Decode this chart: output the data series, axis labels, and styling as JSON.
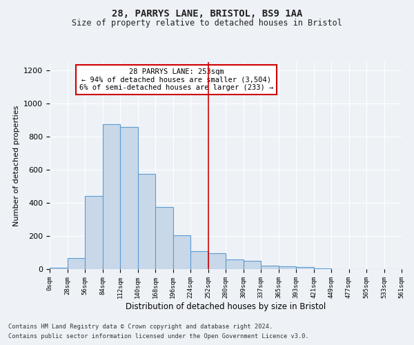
{
  "title": "28, PARRYS LANE, BRISTOL, BS9 1AA",
  "subtitle": "Size of property relative to detached houses in Bristol",
  "xlabel": "Distribution of detached houses by size in Bristol",
  "ylabel": "Number of detached properties",
  "bin_labels": [
    "0sqm",
    "28sqm",
    "56sqm",
    "84sqm",
    "112sqm",
    "140sqm",
    "168sqm",
    "196sqm",
    "224sqm",
    "252sqm",
    "280sqm",
    "309sqm",
    "337sqm",
    "365sqm",
    "393sqm",
    "421sqm",
    "449sqm",
    "477sqm",
    "505sqm",
    "533sqm",
    "561sqm"
  ],
  "bar_values": [
    10,
    68,
    443,
    873,
    860,
    577,
    375,
    203,
    110,
    95,
    58,
    48,
    20,
    15,
    12,
    5,
    2,
    1,
    1,
    1
  ],
  "bar_color": "#c8d8e8",
  "bar_edge_color": "#5b9bd5",
  "bar_width": 1.0,
  "vline_x": 9.0,
  "vline_color": "#cc0000",
  "annotation_title": "28 PARRYS LANE: 253sqm",
  "annotation_line1": "← 94% of detached houses are smaller (3,504)",
  "annotation_line2": "6% of semi-detached houses are larger (233) →",
  "annotation_box_color": "#cc0000",
  "ylim": [
    0,
    1250
  ],
  "yticks": [
    0,
    200,
    400,
    600,
    800,
    1000,
    1200
  ],
  "footer_line1": "Contains HM Land Registry data © Crown copyright and database right 2024.",
  "footer_line2": "Contains public sector information licensed under the Open Government Licence v3.0.",
  "bg_color": "#eef2f6",
  "plot_bg_color": "#eef2f6"
}
